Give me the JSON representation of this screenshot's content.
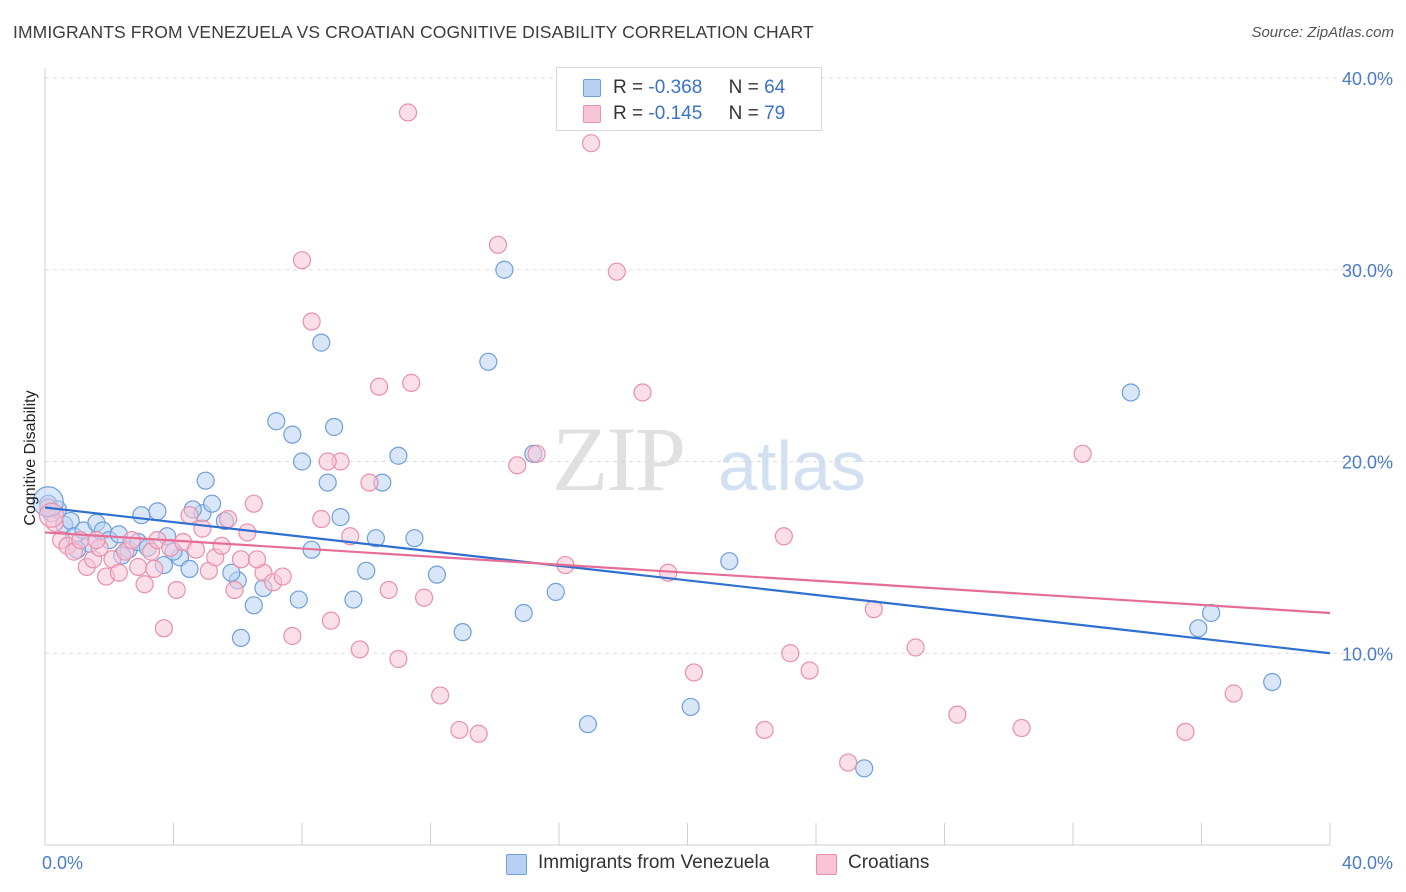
{
  "header": {
    "title": "IMMIGRANTS FROM VENEZUELA VS CROATIAN COGNITIVE DISABILITY CORRELATION CHART",
    "source": "Source: ZipAtlas.com"
  },
  "watermark": {
    "zip": "ZIP",
    "atlas": "atlas"
  },
  "legend": {
    "rows": [
      {
        "r_label": "R =",
        "r_value": "-0.368",
        "n_label": "N =",
        "n_value": "64"
      },
      {
        "r_label": "R =",
        "r_value": "-0.145",
        "n_label": "N =",
        "n_value": "79"
      }
    ]
  },
  "colors": {
    "blue_fill": "#b8d1f3",
    "blue_stroke": "#6f9fdc",
    "blue_line": "#2f6fcf",
    "pink_fill": "#f8c4d5",
    "pink_stroke": "#ea8fac",
    "pink_line": "#e66d96",
    "grid": "#dedede",
    "tick_text": "#4a7cc9"
  },
  "chart_data": {
    "type": "scatter",
    "title": "IMMIGRANTS FROM VENEZUELA VS CROATIAN COGNITIVE DISABILITY CORRELATION CHART",
    "xlabel": "",
    "ylabel": "Cognitive Disability",
    "xlim": [
      0,
      40
    ],
    "ylim": [
      0,
      40
    ],
    "x_tick_labels": [
      "0.0%",
      "40.0%"
    ],
    "y_ticks": [
      10,
      20,
      30,
      40
    ],
    "y_tick_labels": [
      "10.0%",
      "20.0%",
      "30.0%",
      "40.0%"
    ],
    "grid": true,
    "legend_position": "top-center",
    "series": [
      {
        "name": "Immigrants from Venezuela",
        "color": "#6f9fdc",
        "trend": {
          "x": [
            0,
            40
          ],
          "y": [
            17.6,
            10.0
          ]
        },
        "x": [
          0.1,
          0.2,
          0.4,
          0.6,
          0.8,
          0.9,
          1.2,
          1.4,
          1.6,
          1.8,
          2.0,
          2.3,
          2.6,
          2.9,
          3.2,
          3.5,
          3.8,
          4.2,
          4.5,
          4.9,
          5.2,
          5.6,
          6.0,
          6.5,
          7.2,
          7.7,
          8.0,
          8.3,
          8.6,
          9.0,
          9.2,
          9.6,
          10.0,
          10.5,
          11.0,
          11.5,
          12.2,
          13.0,
          13.8,
          14.3,
          14.9,
          15.2,
          15.9,
          16.9,
          20.1,
          21.3,
          25.5,
          33.8,
          35.9,
          36.3,
          38.2,
          3.0,
          3.7,
          4.0,
          4.6,
          5.0,
          6.1,
          6.8,
          5.8,
          7.9,
          8.8,
          10.3,
          2.4,
          1.0
        ],
        "y": [
          17.8,
          17.3,
          17.5,
          16.7,
          16.9,
          16.1,
          16.4,
          15.7,
          16.8,
          16.4,
          15.9,
          16.2,
          15.4,
          15.8,
          15.5,
          17.4,
          16.1,
          15.0,
          14.4,
          17.3,
          17.8,
          16.9,
          13.8,
          12.5,
          22.1,
          21.4,
          20.0,
          15.4,
          26.2,
          21.8,
          17.1,
          12.8,
          14.3,
          18.9,
          20.3,
          16.0,
          14.1,
          11.1,
          25.2,
          30.0,
          12.1,
          20.4,
          13.2,
          6.3,
          7.2,
          14.8,
          4.0,
          23.6,
          11.3,
          12.1,
          8.5,
          17.2,
          14.6,
          15.3,
          17.5,
          19.0,
          10.8,
          13.4,
          14.2,
          12.8,
          18.9,
          16.0,
          15.1,
          15.4
        ]
      },
      {
        "name": "Croatians",
        "color": "#ea8fac",
        "trend": {
          "x": [
            0,
            40
          ],
          "y": [
            16.3,
            12.1
          ]
        },
        "x": [
          0.1,
          0.3,
          0.5,
          0.7,
          0.9,
          1.1,
          1.3,
          1.5,
          1.7,
          1.9,
          2.1,
          2.3,
          2.5,
          2.7,
          2.9,
          3.1,
          3.3,
          3.5,
          3.7,
          3.9,
          4.1,
          4.3,
          4.5,
          4.7,
          4.9,
          5.1,
          5.3,
          5.5,
          5.7,
          5.9,
          6.1,
          6.3,
          6.5,
          6.8,
          7.1,
          7.4,
          7.7,
          8.0,
          8.3,
          8.6,
          8.9,
          9.2,
          9.5,
          9.8,
          10.1,
          10.4,
          10.7,
          11.0,
          11.4,
          11.8,
          12.3,
          12.9,
          13.5,
          14.1,
          14.7,
          15.3,
          16.2,
          17.0,
          17.8,
          18.6,
          19.4,
          20.2,
          22.4,
          23.0,
          23.2,
          23.8,
          25.0,
          25.8,
          27.1,
          28.4,
          30.4,
          32.3,
          35.5,
          37.0,
          1.6,
          3.4,
          6.6,
          8.8,
          11.3
        ],
        "y": [
          17.6,
          16.8,
          15.9,
          15.6,
          15.3,
          15.9,
          14.5,
          14.9,
          15.5,
          14.0,
          14.9,
          14.2,
          15.3,
          15.9,
          14.5,
          13.6,
          15.3,
          15.9,
          11.3,
          15.5,
          13.3,
          15.8,
          17.2,
          15.4,
          16.5,
          14.3,
          15.0,
          15.6,
          17.0,
          13.3,
          14.9,
          16.3,
          17.8,
          14.2,
          13.7,
          14.0,
          10.9,
          30.5,
          27.3,
          17.0,
          11.7,
          20.0,
          16.1,
          10.2,
          18.9,
          23.9,
          13.3,
          9.7,
          24.1,
          12.9,
          7.8,
          6.0,
          5.8,
          31.3,
          19.8,
          20.4,
          14.6,
          36.6,
          29.9,
          23.6,
          14.2,
          9.0,
          6.0,
          16.1,
          10.0,
          9.1,
          4.3,
          12.3,
          10.3,
          6.8,
          6.1,
          20.4,
          5.9,
          7.9,
          15.9,
          14.4,
          14.9,
          20.0,
          38.2
        ]
      }
    ]
  }
}
